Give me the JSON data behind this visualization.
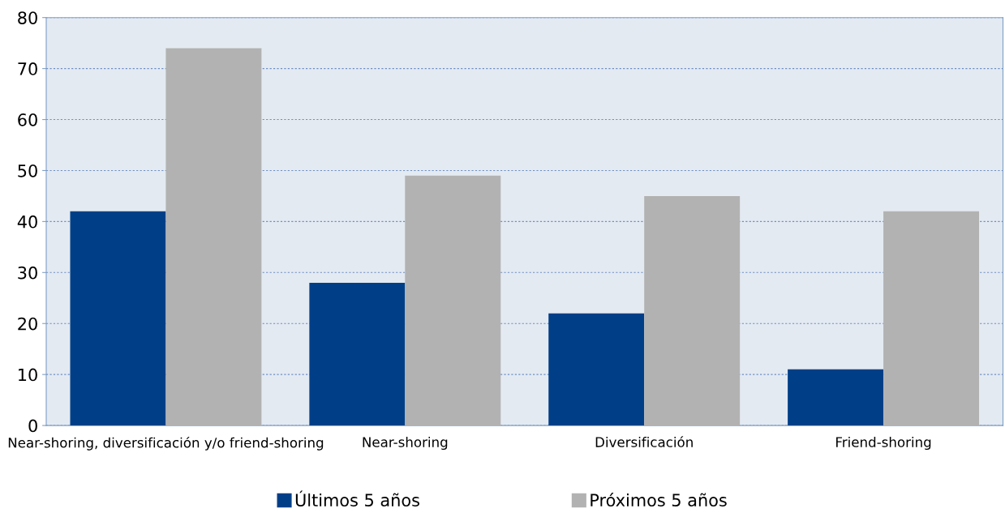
{
  "chart_data": {
    "type": "bar",
    "categories": [
      "Near-shoring, diversificación y/o friend-shoring",
      "Near-shoring",
      "Diversificación",
      "Friend-shoring"
    ],
    "series": [
      {
        "name": "Últimos 5 años",
        "color": "#003f87",
        "values": [
          42,
          28,
          22,
          11
        ]
      },
      {
        "name": "Próximos 5 años",
        "color": "#b2b2b2",
        "values": [
          74,
          49,
          45,
          42
        ]
      }
    ],
    "ylim": [
      0,
      80
    ],
    "yticks": [
      0,
      10,
      20,
      30,
      40,
      50,
      60,
      70,
      80
    ],
    "grid": "y",
    "legend": "bottom"
  }
}
